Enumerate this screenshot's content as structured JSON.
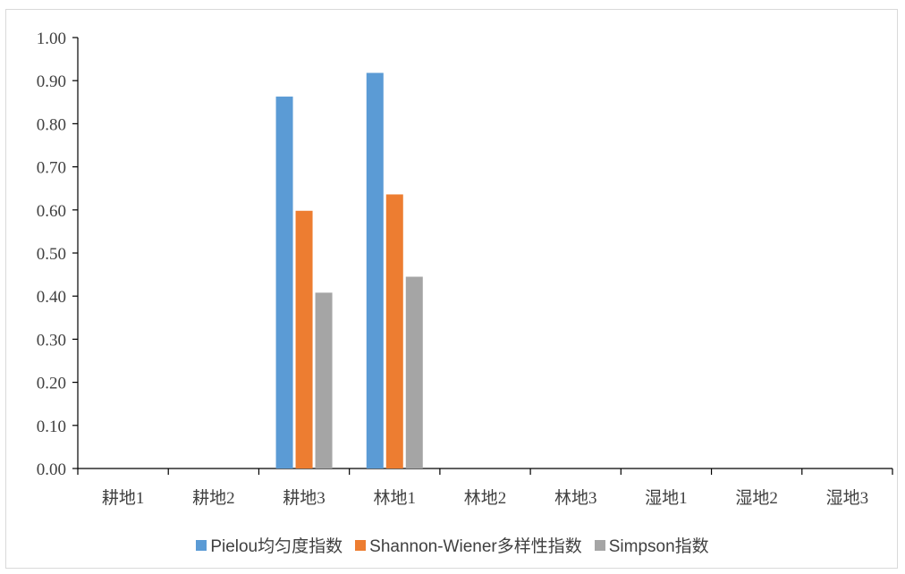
{
  "chart_data": {
    "type": "bar",
    "categories": [
      "耕地1",
      "耕地2",
      "耕地3",
      "林地1",
      "林地2",
      "林地3",
      "湿地1",
      "湿地2",
      "湿地3"
    ],
    "series": [
      {
        "name": "Pielou均匀度指数",
        "color": "#5b9bd5",
        "values": [
          0,
          0,
          0.863,
          0.918,
          0,
          0,
          0,
          0,
          0
        ]
      },
      {
        "name": "Shannon-Wiener多样性指数",
        "color": "#ed7d31",
        "values": [
          0,
          0,
          0.598,
          0.636,
          0,
          0,
          0,
          0,
          0
        ]
      },
      {
        "name": "Simpson指数",
        "color": "#a5a5a5",
        "values": [
          0,
          0,
          0.408,
          0.445,
          0,
          0,
          0,
          0,
          0
        ]
      }
    ],
    "yticks": [
      "0.00",
      "0.10",
      "0.20",
      "0.30",
      "0.40",
      "0.50",
      "0.60",
      "0.70",
      "0.80",
      "0.90",
      "1.00"
    ],
    "ylim": [
      0,
      1
    ],
    "grid": false,
    "legend_position": "bottom"
  }
}
